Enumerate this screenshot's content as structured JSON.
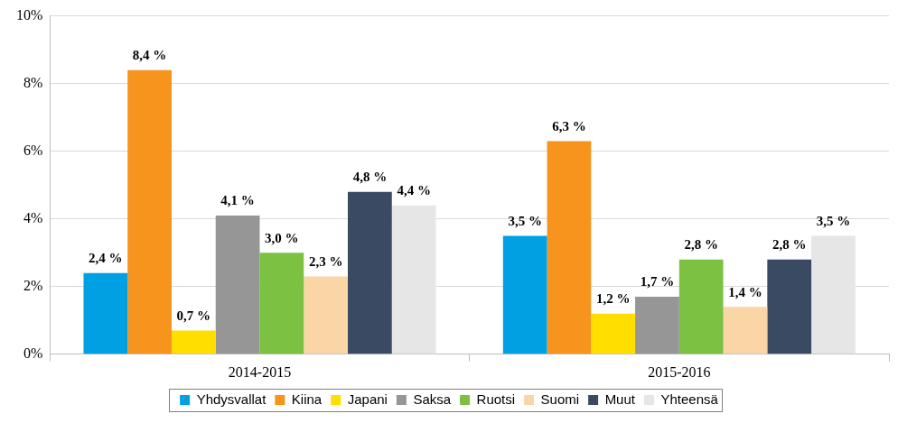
{
  "chart_data": {
    "type": "bar",
    "categories": [
      "2014-2015",
      "2015-2016"
    ],
    "series": [
      {
        "name": "Yhdysvallat",
        "color": "#00a0e3",
        "values": [
          2.4,
          3.5
        ],
        "value_labels": [
          "2,4 %",
          "3,5 %"
        ]
      },
      {
        "name": "Kiina",
        "color": "#f7941d",
        "values": [
          8.4,
          6.3
        ],
        "value_labels": [
          "8,4 %",
          "6,3 %"
        ]
      },
      {
        "name": "Japani",
        "color": "#ffde00",
        "values": [
          0.7,
          1.2
        ],
        "value_labels": [
          "0,7 %",
          "1,2 %"
        ]
      },
      {
        "name": "Saksa",
        "color": "#969696",
        "values": [
          4.1,
          1.7
        ],
        "value_labels": [
          "4,1 %",
          "1,7 %"
        ]
      },
      {
        "name": "Ruotsi",
        "color": "#7cc142",
        "values": [
          3.0,
          2.8
        ],
        "value_labels": [
          "3,0 %",
          "2,8 %"
        ]
      },
      {
        "name": "Suomi",
        "color": "#fad5a5",
        "values": [
          2.3,
          1.4
        ],
        "value_labels": [
          "2,3 %",
          "1,4 %"
        ]
      },
      {
        "name": "Muut",
        "color": "#3b4a63",
        "values": [
          4.8,
          2.8
        ],
        "value_labels": [
          "4,8 %",
          "2,8 %"
        ]
      },
      {
        "name": "Yhteensä",
        "color": "#e6e6e6",
        "values": [
          4.4,
          3.5
        ],
        "value_labels": [
          "4,4 %",
          "3,5 %"
        ]
      }
    ],
    "ylim": [
      0,
      10
    ],
    "yticks": [
      {
        "value": 0,
        "label": "0%"
      },
      {
        "value": 2,
        "label": "2%"
      },
      {
        "value": 4,
        "label": "4%"
      },
      {
        "value": 6,
        "label": "6%"
      },
      {
        "value": 8,
        "label": "8%"
      },
      {
        "value": 10,
        "label": "10%"
      }
    ],
    "grid": true,
    "legend": "bottom",
    "data_labels": true
  }
}
